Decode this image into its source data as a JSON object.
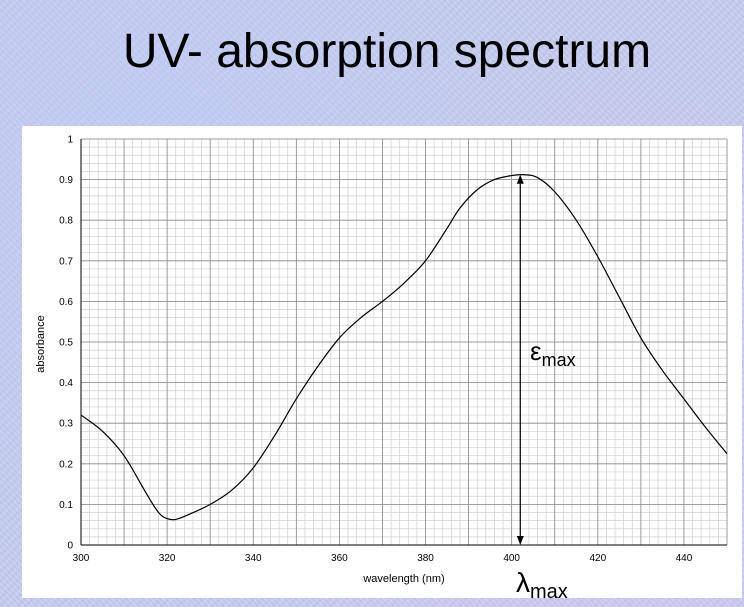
{
  "slide": {
    "title": "UV- absorption spectrum"
  },
  "chart_data": {
    "type": "line",
    "title": "",
    "xlabel": "wavelength (nm)",
    "ylabel": "absorbance",
    "xlim": [
      300,
      450
    ],
    "ylim": [
      0,
      1
    ],
    "xticks": [
      300,
      320,
      340,
      360,
      380,
      400,
      420,
      440
    ],
    "yticks": [
      0,
      0.1,
      0.2,
      0.3,
      0.4,
      0.5,
      0.6,
      0.7,
      0.8,
      0.9,
      1
    ],
    "grid": true,
    "legend": "none",
    "line_color": "#000000",
    "series": [
      {
        "x": [
          300,
          305,
          310,
          315,
          318,
          320,
          322,
          325,
          330,
          335,
          340,
          345,
          350,
          355,
          360,
          365,
          370,
          375,
          380,
          385,
          388,
          392,
          396,
          400,
          403,
          406,
          410,
          415,
          420,
          425,
          430,
          435,
          440,
          445,
          450
        ],
        "values": [
          0.32,
          0.28,
          0.22,
          0.13,
          0.08,
          0.065,
          0.063,
          0.075,
          0.1,
          0.135,
          0.19,
          0.27,
          0.36,
          0.44,
          0.51,
          0.56,
          0.6,
          0.645,
          0.7,
          0.78,
          0.83,
          0.875,
          0.9,
          0.91,
          0.912,
          0.905,
          0.87,
          0.8,
          0.71,
          0.61,
          0.51,
          0.43,
          0.36,
          0.29,
          0.225
        ]
      }
    ],
    "annotations": {
      "peak_wavelength": 402,
      "peak_absorbance": 0.912,
      "epsilon_symbol": "ε",
      "epsilon_subscript": "max",
      "lambda_symbol": "λ",
      "lambda_subscript": "max"
    }
  }
}
